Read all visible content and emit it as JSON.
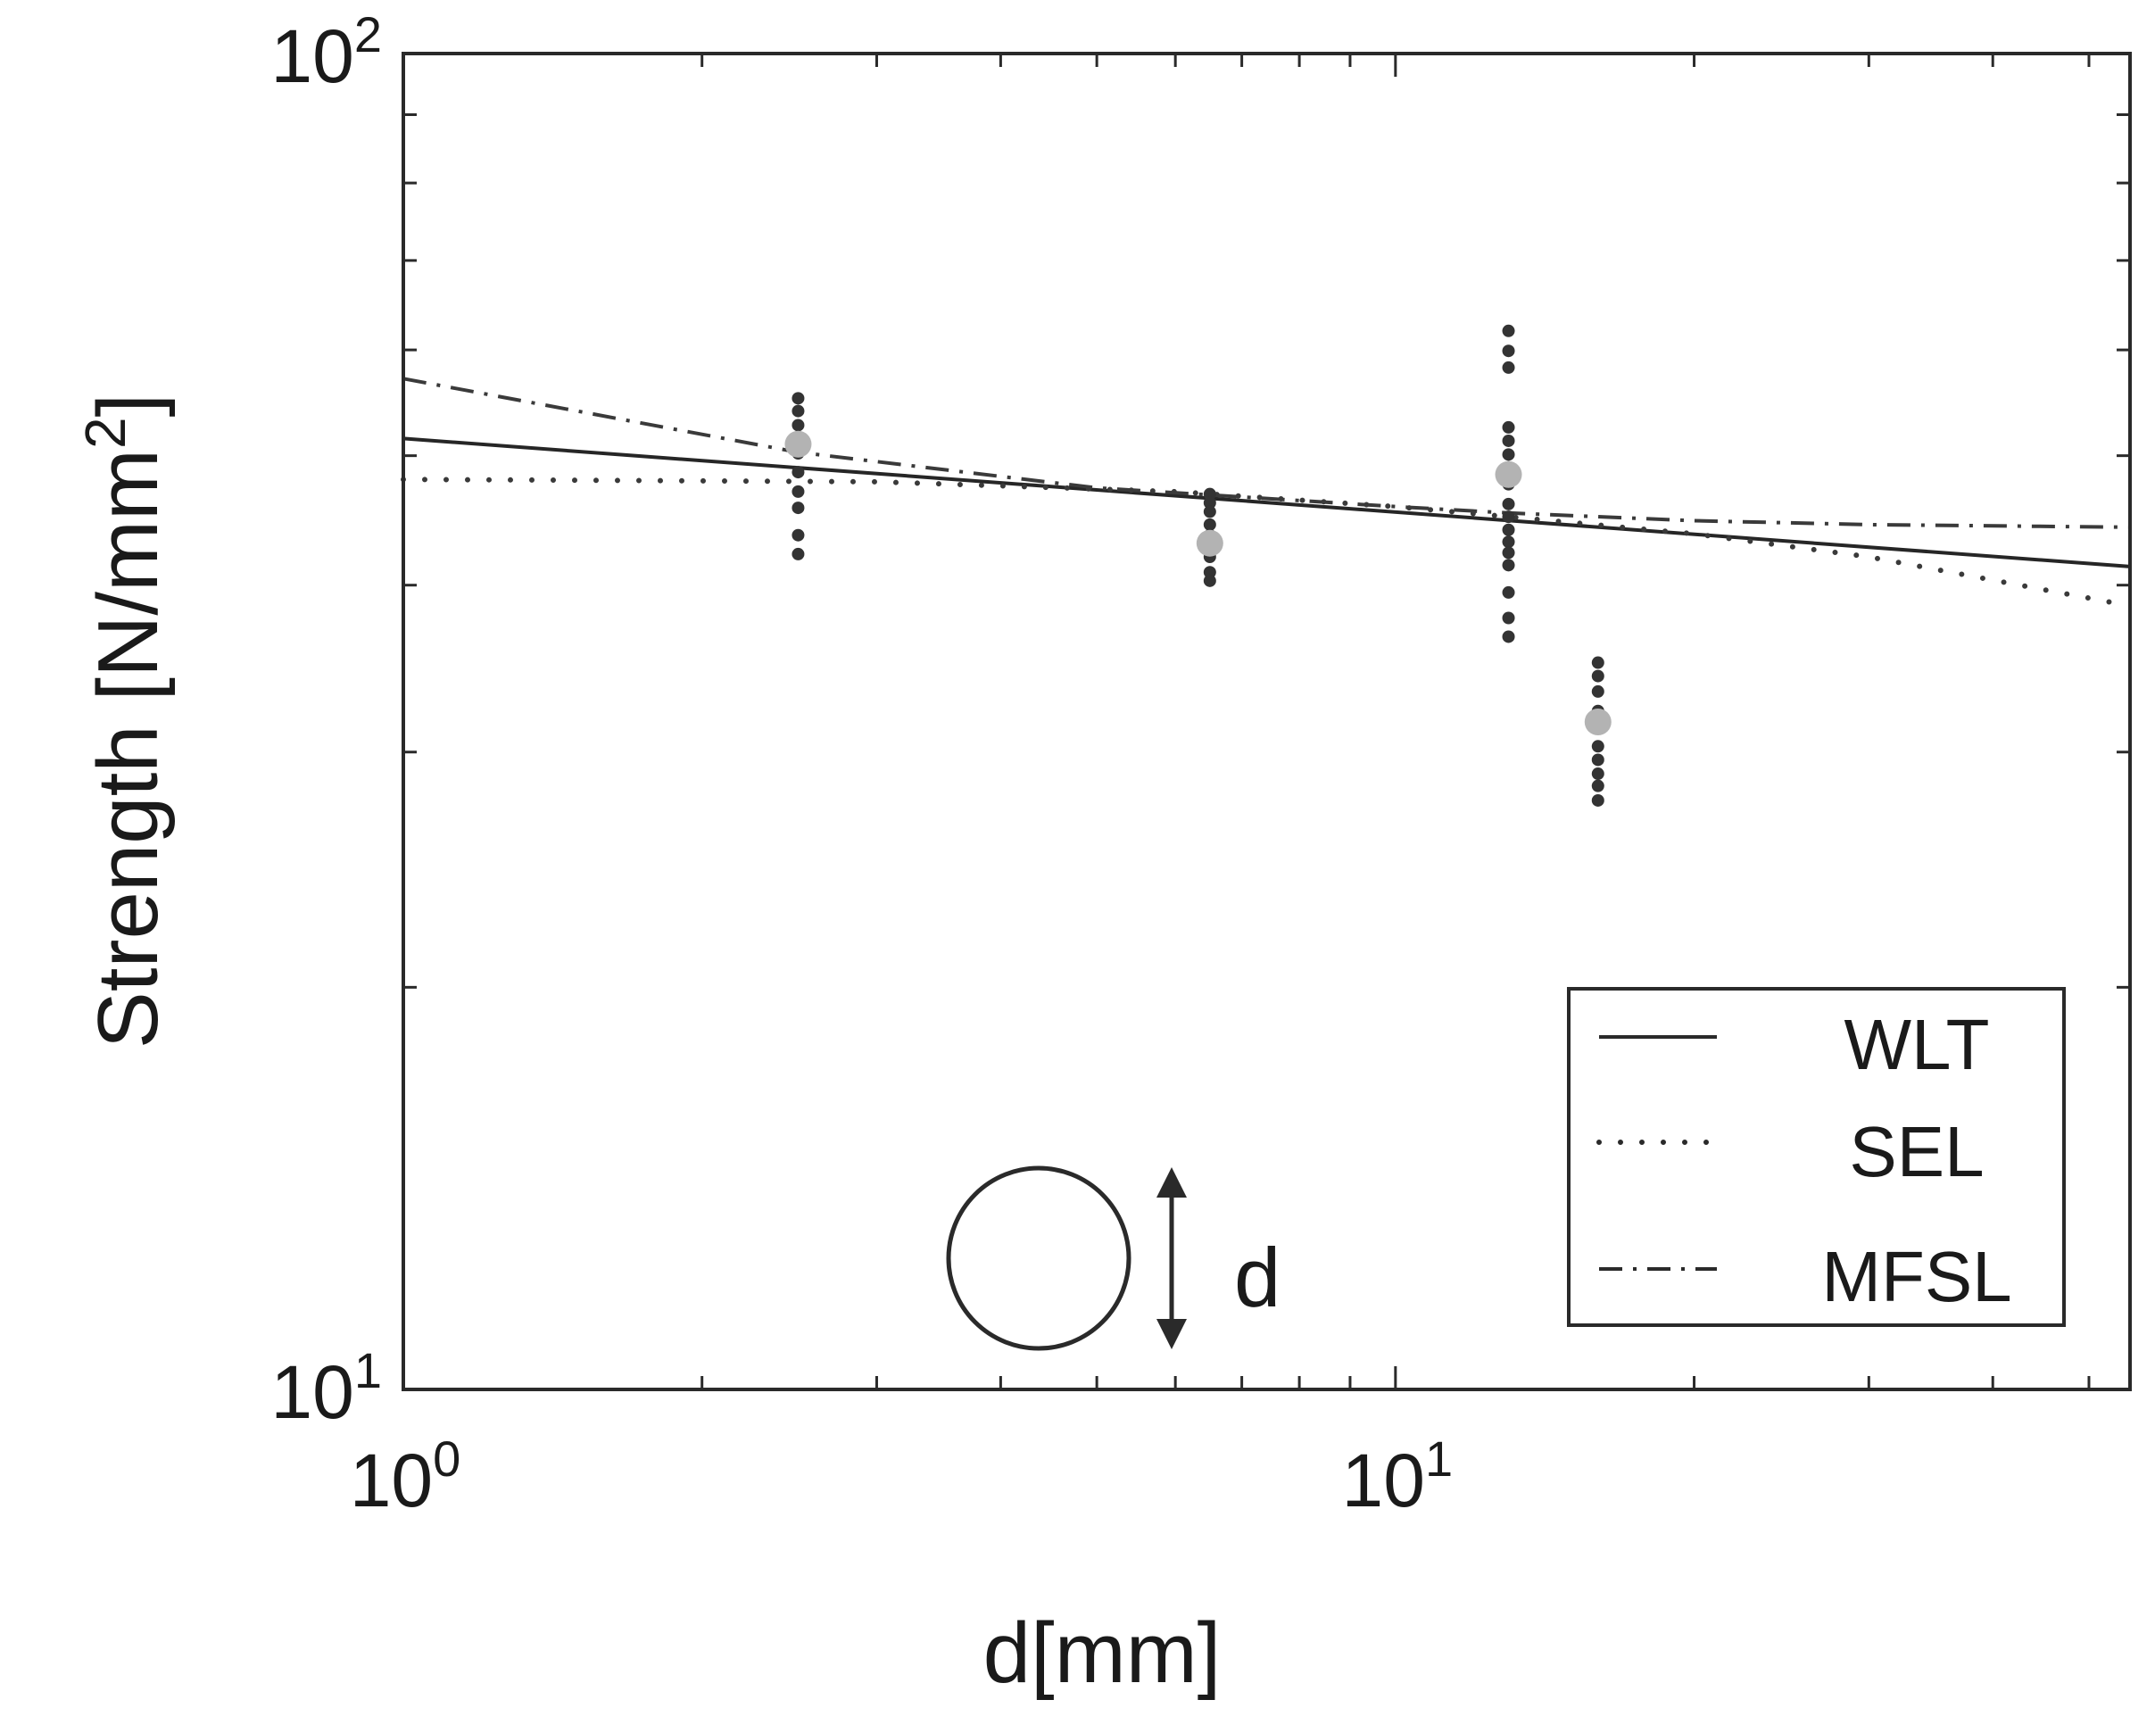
{
  "chart_data": {
    "type": "scatter",
    "x_scale": "log",
    "y_scale": "log",
    "xlabel": "d[mm]",
    "ylabel": {
      "base": "Strength [N/mm",
      "sup": "2",
      "tail": "]"
    },
    "xlim": [
      1,
      55
    ],
    "ylim": [
      10,
      100
    ],
    "x_ticks": [
      {
        "value": 1,
        "base": "10",
        "exp": "0"
      },
      {
        "value": 10,
        "base": "10",
        "exp": "1"
      }
    ],
    "y_ticks": [
      {
        "value": 10,
        "base": "10",
        "exp": "1"
      },
      {
        "value": 100,
        "base": "10",
        "exp": "2"
      }
    ],
    "grid": false,
    "legend_position": "bottom-right",
    "series": [
      {
        "name": "WLT",
        "style": "solid",
        "x": [
          1,
          55
        ],
        "y": [
          51.5,
          41.3
        ]
      },
      {
        "name": "SEL",
        "style": "dotted",
        "x": [
          1,
          3,
          6,
          10,
          13,
          20,
          30,
          55
        ],
        "y": [
          48.0,
          47.8,
          47.0,
          45.8,
          45.0,
          43.7,
          42.0,
          38.6
        ]
      },
      {
        "name": "MFSL",
        "style": "dashdot",
        "x": [
          1,
          2.5,
          5,
          10,
          13,
          20,
          30,
          55
        ],
        "y": [
          57.1,
          50.3,
          47.3,
          45.8,
          45.3,
          44.7,
          44.4,
          44.2
        ]
      }
    ],
    "raw_points": {
      "color": "#333333",
      "groups": [
        {
          "x": 2.5,
          "y": [
            55.2,
            54.0,
            52.7,
            51.2,
            50.2,
            48.6,
            47.0,
            45.7,
            43.6,
            42.2
          ]
        },
        {
          "x": 6.5,
          "y": [
            46.8,
            46.1,
            45.4,
            44.4,
            43.6,
            42.0,
            40.9,
            40.3
          ]
        },
        {
          "x": 13,
          "y": [
            62.0,
            59.9,
            58.2,
            52.5,
            51.3,
            50.1,
            49.0,
            47.6,
            46.0,
            45.0,
            44.0,
            43.1,
            42.3,
            41.4,
            39.5,
            37.8,
            36.6
          ]
        },
        {
          "x": 16,
          "y": [
            35.0,
            34.2,
            33.3,
            32.2,
            31.3,
            30.3,
            29.6,
            28.9,
            28.3,
            27.6
          ]
        }
      ]
    },
    "mean_points": {
      "color": "#b3b3b3",
      "x": [
        2.5,
        6.5,
        13,
        16
      ],
      "y": [
        51.0,
        43.0,
        48.4,
        31.6
      ]
    },
    "annotation": {
      "label": "d"
    }
  }
}
